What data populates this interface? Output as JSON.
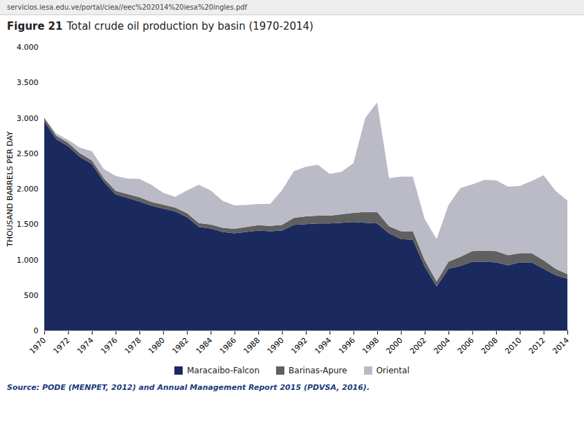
{
  "chart_data": {
    "type": "area",
    "title": "Figure 21",
    "subtitle": "Total crude oil production by basin (1970-2014)",
    "ylabel": "THOUSAND BARRELS PER DAY",
    "annotations": [
      "servicios.iesa.edu.ve/portal/ciea//eec%202014%20iesa%20ingles.pdf",
      "Source: PODE (MENPET, 2012) and Annual Management Report 2015 (PDVSA, 2016)."
    ],
    "x": [
      1970,
      1971,
      1972,
      1973,
      1974,
      1975,
      1976,
      1977,
      1978,
      1979,
      1980,
      1981,
      1982,
      1983,
      1984,
      1985,
      1986,
      1987,
      1988,
      1989,
      1990,
      1991,
      1992,
      1993,
      1994,
      1995,
      1996,
      1997,
      1998,
      1999,
      2000,
      2001,
      2002,
      2003,
      2004,
      2005,
      2006,
      2007,
      2008,
      2009,
      2010,
      2011,
      2012,
      2013,
      2014
    ],
    "series": [
      {
        "name": "Maracaibo-Falcon",
        "color": "#1b2a5e",
        "values": [
          2950,
          2700,
          2600,
          2450,
          2350,
          2100,
          1920,
          1870,
          1820,
          1760,
          1720,
          1680,
          1600,
          1460,
          1440,
          1390,
          1370,
          1390,
          1410,
          1400,
          1410,
          1490,
          1500,
          1510,
          1510,
          1520,
          1530,
          1520,
          1510,
          1370,
          1290,
          1280,
          900,
          620,
          870,
          910,
          970,
          970,
          960,
          920,
          960,
          960,
          870,
          780,
          730
        ]
      },
      {
        "name": "Barinas-Apure",
        "color": "#606060",
        "values": [
          50,
          50,
          50,
          50,
          50,
          50,
          50,
          55,
          60,
          55,
          55,
          55,
          55,
          55,
          55,
          60,
          65,
          70,
          75,
          75,
          80,
          100,
          110,
          110,
          110,
          120,
          130,
          150,
          160,
          100,
          110,
          120,
          90,
          70,
          100,
          130,
          150,
          155,
          160,
          140,
          130,
          130,
          120,
          90,
          65
        ]
      },
      {
        "name": "Oriental",
        "color": "#bbbbc8",
        "values": [
          0,
          30,
          40,
          80,
          130,
          130,
          210,
          220,
          260,
          240,
          170,
          150,
          320,
          540,
          480,
          380,
          330,
          310,
          300,
          310,
          490,
          660,
          700,
          720,
          590,
          600,
          700,
          1330,
          1550,
          680,
          770,
          770,
          580,
          600,
          800,
          970,
          940,
          1000,
          1000,
          970,
          950,
          1020,
          1200,
          1100,
          1040
        ]
      }
    ],
    "xlim": [
      1970,
      2014
    ],
    "xticks": [
      1970,
      1972,
      1974,
      1976,
      1978,
      1980,
      1982,
      1984,
      1986,
      1988,
      1990,
      1992,
      1994,
      1996,
      1998,
      2000,
      2002,
      2004,
      2006,
      2008,
      2010,
      2012,
      2014
    ],
    "ylim": [
      0,
      4000
    ],
    "yticks": [
      0,
      500,
      {
        "value": 1000,
        "label": "1.000"
      },
      {
        "value": 1500,
        "label": "1.500"
      },
      {
        "value": 2000,
        "label": "2.000"
      },
      {
        "value": 2500,
        "label": "2.500"
      },
      {
        "value": 3000,
        "label": "3.000"
      },
      {
        "value": 3500,
        "label": "3.500"
      },
      {
        "value": 4000,
        "label": "4.000"
      }
    ],
    "stacked": true,
    "legend": "bottom",
    "grid": false
  }
}
